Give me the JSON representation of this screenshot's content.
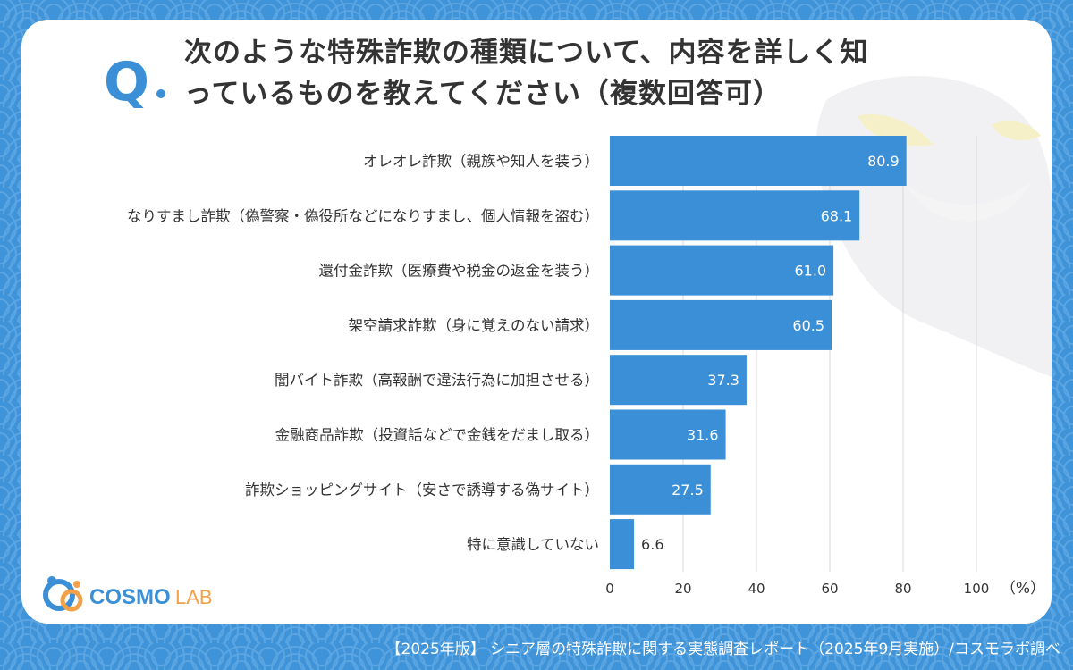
{
  "question_mark": "Q",
  "title_line1": "次のような特殊詐欺の種類について、内容を詳しく知",
  "title_line2": "っているものを教えてください（複数回答可）",
  "logo_text_main": "COSMO",
  "logo_text_sub": "LAB",
  "footer": "【2025年版】 シニア層の特殊詐欺に関する実態調査レポート（2025年9月実施）/コスモラボ調べ",
  "colors": {
    "bar": "#3a8fd6",
    "background": "#3f93d8",
    "grid": "#d8d8d8",
    "logo_orange": "#f0a24a"
  },
  "chart_data": {
    "type": "bar",
    "orientation": "horizontal",
    "categories": [
      "オレオレ詐欺（親族や知人を装う）",
      "なりすまし詐欺（偽警察・偽役所などになりすまし、個人情報を盗む）",
      "還付金詐欺（医療費や税金の返金を装う）",
      "架空請求詐欺（身に覚えのない請求）",
      "闇バイト詐欺（高報酬で違法行為に加担させる）",
      "金融商品詐欺（投資話などで金銭をだまし取る）",
      "詐欺ショッピングサイト（安さで誘導する偽サイト）",
      "特に意識していない"
    ],
    "values": [
      80.9,
      68.1,
      61.0,
      60.5,
      37.3,
      31.6,
      27.5,
      6.6
    ],
    "value_labels": [
      "80.9",
      "68.1",
      "61.0",
      "60.5",
      "37.3",
      "31.6",
      "27.5",
      "6.6"
    ],
    "xlim": [
      0,
      100
    ],
    "xticks": [
      "0",
      "20",
      "40",
      "60",
      "80",
      "100"
    ],
    "xunit": "（%）",
    "grid": true
  }
}
